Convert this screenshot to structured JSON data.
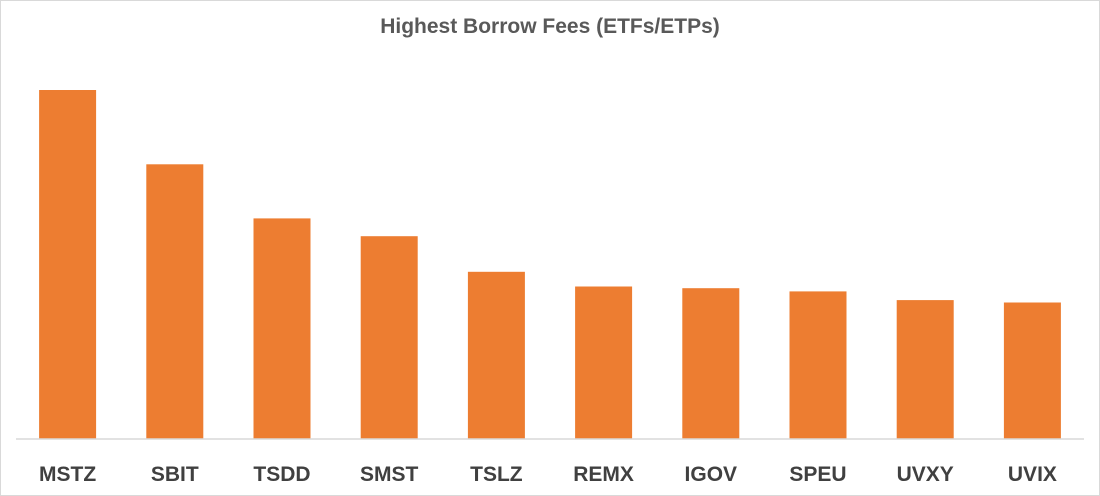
{
  "chart_data": {
    "type": "bar",
    "title": "Highest Borrow Fees (ETFs/ETPs)",
    "categories": [
      "MSTZ",
      "SBIT",
      "TSDD",
      "SMST",
      "TSLZ",
      "REMX",
      "IGOV",
      "SPEU",
      "UVXY",
      "UVIX"
    ],
    "values": [
      100,
      78.7,
      63.2,
      58.1,
      47.9,
      43.7,
      43.2,
      42.3,
      39.8,
      39.1
    ],
    "ylim": [
      0,
      100
    ],
    "xlabel": "",
    "ylabel": "",
    "grid": false,
    "legend": "none",
    "bar_color": "#ED7D31",
    "axis_color": "#d9d9d9"
  }
}
